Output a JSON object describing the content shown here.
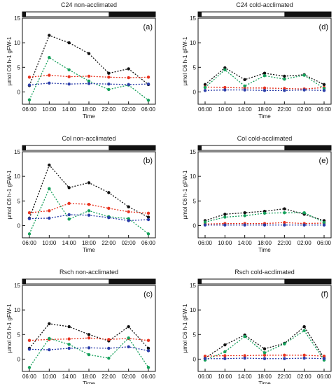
{
  "colors": {
    "black": "#111111",
    "red": "#e8321e",
    "green": "#14a05a",
    "blue": "#2a3ca8"
  },
  "chart_data": [
    {
      "type": "line",
      "panel": "(a)",
      "title": "C24 non-acclimated",
      "categories": [
        "06:00",
        "10:00",
        "14:00",
        "18:00",
        "22:00",
        "02:00",
        "06:00"
      ],
      "xlabel": "Time",
      "ylabel": "µmol C6 h-1 gFW-1",
      "ylim": [
        0,
        15
      ],
      "yticks": [
        0,
        5,
        10,
        15
      ],
      "light_period": "light 06:00-22:00, dark 22:00-06:00",
      "series": [
        {
          "color": "black",
          "values": [
            1.3,
            11.5,
            10.0,
            7.8,
            3.8,
            4.7,
            1.5
          ]
        },
        {
          "color": "red",
          "values": [
            3.0,
            3.4,
            3.1,
            3.2,
            3.0,
            2.9,
            3.0
          ]
        },
        {
          "color": "green",
          "values": [
            -1.6,
            7.0,
            4.5,
            2.2,
            0.5,
            1.4,
            -1.7
          ]
        },
        {
          "color": "blue",
          "values": [
            1.4,
            1.8,
            1.6,
            1.7,
            1.6,
            1.5,
            1.6
          ]
        }
      ]
    },
    {
      "type": "line",
      "panel": "(d)",
      "title": "C24 cold-acclimated",
      "categories": [
        "06:00",
        "10:00",
        "14:00",
        "18:00",
        "22:00",
        "02:00",
        "06:00"
      ],
      "xlabel": "Time",
      "ylabel": "µmol C6 h-1 gFW-1",
      "ylim": [
        0,
        15
      ],
      "yticks": [
        0,
        5,
        10,
        15
      ],
      "series": [
        {
          "color": "black",
          "values": [
            1.5,
            4.9,
            2.5,
            3.8,
            3.2,
            3.5,
            1.5
          ]
        },
        {
          "color": "red",
          "values": [
            1.0,
            0.9,
            0.8,
            0.8,
            0.7,
            0.6,
            0.9
          ]
        },
        {
          "color": "green",
          "values": [
            0.9,
            4.5,
            1.2,
            3.3,
            2.6,
            3.4,
            0.7
          ]
        },
        {
          "color": "blue",
          "values": [
            0.3,
            0.4,
            0.4,
            0.3,
            0.3,
            0.4,
            0.3
          ]
        }
      ]
    },
    {
      "type": "line",
      "panel": "(b)",
      "title": "Col non-acclimated",
      "categories": [
        "06:00",
        "10:00",
        "14:00",
        "18:00",
        "22:00",
        "02:00",
        "06:00"
      ],
      "xlabel": "Time",
      "ylabel": "µmol C6 h-1 gFW-1",
      "ylim": [
        0,
        15
      ],
      "yticks": [
        0,
        5,
        10,
        15
      ],
      "series": [
        {
          "color": "black",
          "values": [
            1.5,
            12.3,
            7.7,
            8.7,
            6.7,
            3.8,
            1.7
          ]
        },
        {
          "color": "red",
          "values": [
            2.6,
            3.0,
            4.5,
            4.3,
            3.5,
            2.8,
            2.5
          ]
        },
        {
          "color": "green",
          "values": [
            -1.7,
            7.5,
            1.3,
            3.0,
            1.8,
            1.4,
            -1.7
          ]
        },
        {
          "color": "blue",
          "values": [
            1.4,
            1.5,
            2.2,
            2.1,
            1.6,
            1.0,
            1.2
          ]
        }
      ]
    },
    {
      "type": "line",
      "panel": "(e)",
      "title": "Col cold-acclimated",
      "categories": [
        "06:00",
        "10:00",
        "14:00",
        "18:00",
        "22:00",
        "02:00",
        "06:00"
      ],
      "xlabel": "Time",
      "ylabel": "µmol C6 h-1 gFW-1",
      "ylim": [
        0,
        15
      ],
      "yticks": [
        0,
        5,
        10,
        15
      ],
      "series": [
        {
          "color": "black",
          "values": [
            1.0,
            2.3,
            2.6,
            2.9,
            3.4,
            2.3,
            1.0
          ]
        },
        {
          "color": "red",
          "values": [
            0.3,
            0.4,
            0.4,
            0.4,
            0.6,
            0.4,
            0.5
          ]
        },
        {
          "color": "green",
          "values": [
            0.7,
            1.7,
            2.0,
            2.5,
            2.6,
            2.6,
            0.6
          ]
        },
        {
          "color": "blue",
          "values": [
            0.1,
            0.1,
            0.1,
            0.1,
            0.1,
            0.1,
            0.1
          ]
        }
      ]
    },
    {
      "type": "line",
      "panel": "(c)",
      "title": "Rsch non-acclimated",
      "categories": [
        "06:00",
        "10:00",
        "14:00",
        "18:00",
        "22:00",
        "02:00",
        "06:00"
      ],
      "xlabel": "Time",
      "ylabel": "µmol C6 h-1 gFW-1",
      "ylim": [
        0,
        15
      ],
      "yticks": [
        0,
        5,
        10,
        15
      ],
      "series": [
        {
          "color": "black",
          "values": [
            2.2,
            7.2,
            6.6,
            5.0,
            3.7,
            6.6,
            2.2
          ]
        },
        {
          "color": "red",
          "values": [
            3.8,
            4.0,
            4.1,
            4.3,
            4.0,
            4.2,
            3.8
          ]
        },
        {
          "color": "green",
          "values": [
            -1.7,
            4.2,
            3.0,
            0.9,
            0.2,
            4.3,
            -1.7
          ]
        },
        {
          "color": "blue",
          "values": [
            2.0,
            1.9,
            2.2,
            2.3,
            2.2,
            2.5,
            1.7
          ]
        }
      ]
    },
    {
      "type": "line",
      "panel": "(f)",
      "title": "Rsch cold-acclimated",
      "categories": [
        "06:00",
        "10:00",
        "14:00",
        "18:00",
        "22:00",
        "02:00",
        "06:00"
      ],
      "xlabel": "Time",
      "ylabel": "µmol C6 h-1 gFW-1",
      "ylim": [
        0,
        15
      ],
      "yticks": [
        0,
        5,
        10,
        15
      ],
      "series": [
        {
          "color": "black",
          "values": [
            0.2,
            2.9,
            4.9,
            2.1,
            3.2,
            6.6,
            0.2
          ]
        },
        {
          "color": "red",
          "values": [
            0.6,
            0.7,
            0.7,
            0.8,
            0.8,
            0.8,
            0.6
          ]
        },
        {
          "color": "green",
          "values": [
            -0.2,
            1.5,
            4.6,
            1.3,
            3.1,
            5.8,
            -0.2
          ]
        },
        {
          "color": "blue",
          "values": [
            0.1,
            0.1,
            0.2,
            0.1,
            0.1,
            0.2,
            0.1
          ]
        }
      ]
    }
  ]
}
